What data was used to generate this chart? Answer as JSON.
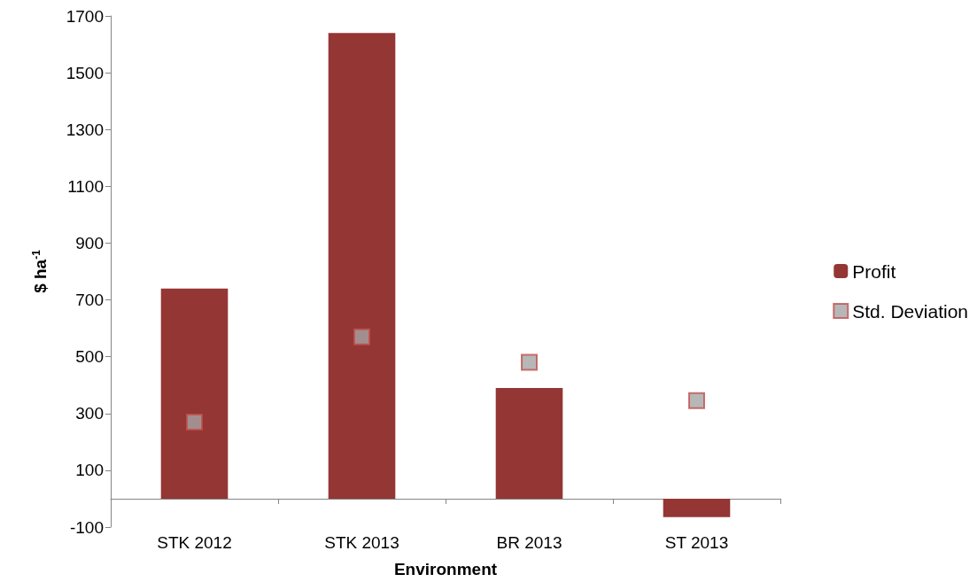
{
  "chart_data": {
    "type": "bar",
    "xlabel": "Environment",
    "ylabel": "$ ha$^{-1}$",
    "categories": [
      "STK 2012",
      "STK 2013",
      "BR 2013",
      "ST 2013"
    ],
    "series": [
      {
        "name": "Profit",
        "color": "#943634",
        "values": [
          740,
          1640,
          390,
          -65
        ]
      },
      {
        "name": "Std. Deviation",
        "type": "scatter",
        "color": "#a5a5a5",
        "marker": "square",
        "x": [
          "STK 2012",
          "STK 2013",
          "BR 2013",
          "ST 2013"
        ],
        "values": [
          270,
          570,
          480,
          345
        ]
      }
    ],
    "ylim": [
      -100,
      1700
    ],
    "yticks": [
      -100,
      100,
      300,
      500,
      700,
      900,
      1100,
      1300,
      1500,
      1700
    ],
    "grid": false,
    "legend": "right"
  }
}
